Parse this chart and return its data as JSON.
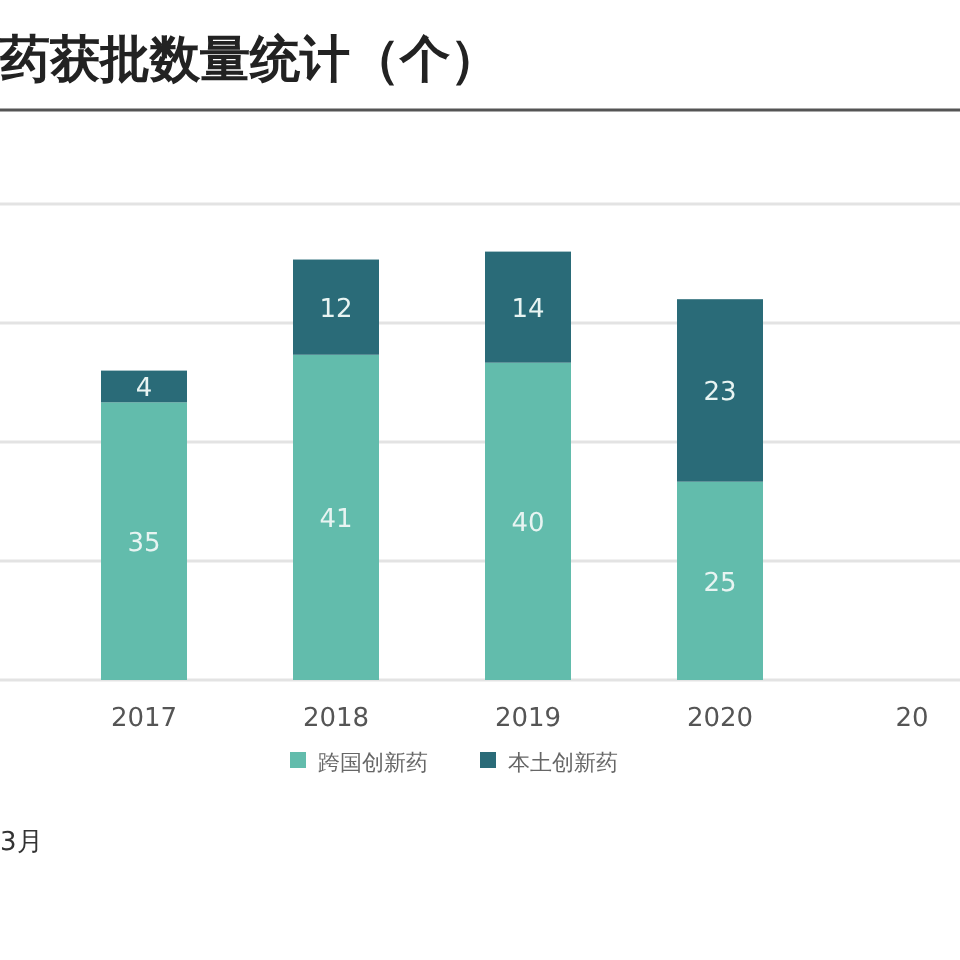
{
  "chart_data": {
    "type": "bar",
    "title": "药获批数量统计（个）",
    "categories": [
      "2017",
      "2018",
      "2019",
      "2020",
      "20"
    ],
    "series": [
      {
        "name": "跨国创新药",
        "color": "#62bcac",
        "values": [
          35,
          41,
          40,
          25,
          null
        ]
      },
      {
        "name": "本土创新药",
        "color": "#2a6b78",
        "values": [
          4,
          12,
          14,
          23,
          null
        ]
      }
    ],
    "stacked": true,
    "data_labels": true,
    "ylim": [
      0,
      60
    ],
    "yticks": [
      {
        "value": 0,
        "label": null
      },
      {
        "value": 15,
        "label": null
      },
      {
        "value": 30,
        "label": null
      },
      {
        "value": 45,
        "label": null
      },
      {
        "value": 60,
        "label": null
      }
    ],
    "tick_labels": "x",
    "grid": "y",
    "legend": "bottom",
    "annotations": [
      "3月"
    ]
  }
}
